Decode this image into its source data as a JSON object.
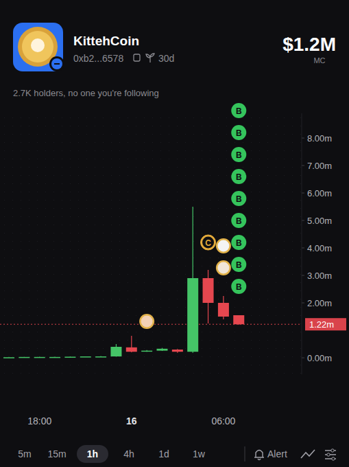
{
  "header": {
    "name": "KittehCoin",
    "address": "0xb2...6578",
    "age": "30d",
    "market_cap": "$1.2M",
    "market_cap_label": "MC",
    "holders": "2.7K holders, no one you're following"
  },
  "chart_data": {
    "type": "candlestick",
    "categories": [
      null,
      null,
      "18:00",
      null,
      null,
      null,
      null,
      null,
      "16",
      null,
      null,
      null,
      null,
      null,
      "06:00",
      null
    ],
    "open": [
      0.02,
      0.02,
      0.03,
      0.03,
      0.03,
      0.04,
      0.05,
      0.05,
      0.38,
      0.24,
      0.26,
      0.3,
      0.22,
      2.9,
      2.0,
      1.55
    ],
    "high": [
      0.03,
      0.03,
      0.04,
      0.04,
      0.05,
      0.05,
      0.06,
      0.5,
      0.8,
      0.28,
      0.36,
      0.32,
      5.5,
      3.2,
      2.25,
      1.55
    ],
    "low": [
      0.01,
      0.02,
      0.02,
      0.02,
      0.03,
      0.04,
      0.04,
      0.04,
      0.2,
      0.22,
      0.25,
      0.18,
      0.18,
      1.25,
      1.4,
      1.2
    ],
    "close": [
      0.02,
      0.03,
      0.03,
      0.03,
      0.04,
      0.05,
      0.05,
      0.4,
      0.22,
      0.26,
      0.33,
      0.22,
      2.9,
      2.0,
      1.5,
      1.22
    ],
    "ylim": [
      -0.6,
      8.9
    ],
    "yticks": [
      {
        "value": 0,
        "label": "0.00m"
      },
      {
        "value": 2,
        "label": "2.00m"
      },
      {
        "value": 3,
        "label": "3.00m"
      },
      {
        "value": 4,
        "label": "4.00m"
      },
      {
        "value": 5,
        "label": "5.00m"
      },
      {
        "value": 6,
        "label": "6.00m"
      },
      {
        "value": 7,
        "label": "7.00m"
      },
      {
        "value": 8,
        "label": "8.00m"
      }
    ],
    "current_price": {
      "value": 1.22,
      "label": "1.22m"
    },
    "annotations": [
      {
        "text": "C",
        "at": 13
      },
      {
        "text": "B",
        "at": 15
      },
      {
        "text": "B",
        "at": 15
      },
      {
        "text": "B",
        "at": 15
      },
      {
        "text": "B",
        "at": 15
      },
      {
        "text": "B",
        "at": 15
      },
      {
        "text": "B",
        "at": 15
      },
      {
        "text": "B",
        "at": 15
      },
      {
        "text": "B",
        "at": 15
      },
      {
        "text": "B",
        "at": 15
      }
    ],
    "grid": false
  },
  "timeframes": {
    "options": [
      "5m",
      "15m",
      "1h",
      "4h",
      "1d",
      "1w"
    ],
    "selected": "1h"
  },
  "alert": "Alert"
}
